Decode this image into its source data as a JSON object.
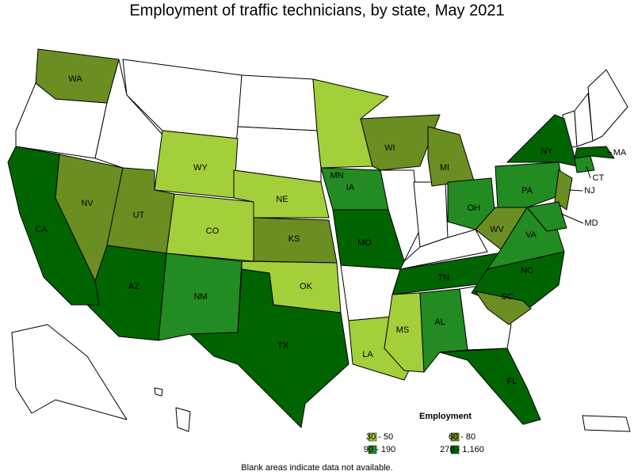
{
  "title": "Employment of traffic technicians, by state, May 2021",
  "legend": {
    "title": "Employment",
    "items": [
      {
        "label": "30 - 50",
        "color": "#a3cf3a"
      },
      {
        "label": "60 - 80",
        "color": "#6b8e23"
      },
      {
        "label": "90 - 190",
        "color": "#228b22"
      },
      {
        "label": "270 - 1,160",
        "color": "#006400"
      }
    ]
  },
  "states": [
    {
      "label": "WA",
      "bin": 1
    },
    {
      "label": "CA",
      "bin": 3
    },
    {
      "label": "NV",
      "bin": 1
    },
    {
      "label": "UT",
      "bin": 1
    },
    {
      "label": "AZ",
      "bin": 3
    },
    {
      "label": "WY",
      "bin": 0
    },
    {
      "label": "CO",
      "bin": 0
    },
    {
      "label": "NM",
      "bin": 2
    },
    {
      "label": "NE",
      "bin": 0
    },
    {
      "label": "KS",
      "bin": 1
    },
    {
      "label": "OK",
      "bin": 0
    },
    {
      "label": "TX",
      "bin": 3
    },
    {
      "label": "MN",
      "bin": 0
    },
    {
      "label": "IA",
      "bin": 2
    },
    {
      "label": "MO",
      "bin": 3
    },
    {
      "label": "WI",
      "bin": 1
    },
    {
      "label": "MI",
      "bin": 1
    },
    {
      "label": "LA",
      "bin": 0
    },
    {
      "label": "MS",
      "bin": 0
    },
    {
      "label": "AL",
      "bin": 2
    },
    {
      "label": "TN",
      "bin": 3
    },
    {
      "label": "OH",
      "bin": 2
    },
    {
      "label": "WV",
      "bin": 1
    },
    {
      "label": "VA",
      "bin": 2
    },
    {
      "label": "NC",
      "bin": 3
    },
    {
      "label": "SC",
      "bin": 1
    },
    {
      "label": "FL",
      "bin": 3
    },
    {
      "label": "PA",
      "bin": 2
    },
    {
      "label": "NY",
      "bin": 3
    },
    {
      "label": "NJ",
      "bin": 1
    },
    {
      "label": "CT",
      "bin": 2
    },
    {
      "label": "MA",
      "bin": 3
    },
    {
      "label": "MD",
      "bin": 2
    }
  ],
  "note": "Blank areas indicate data not available."
}
